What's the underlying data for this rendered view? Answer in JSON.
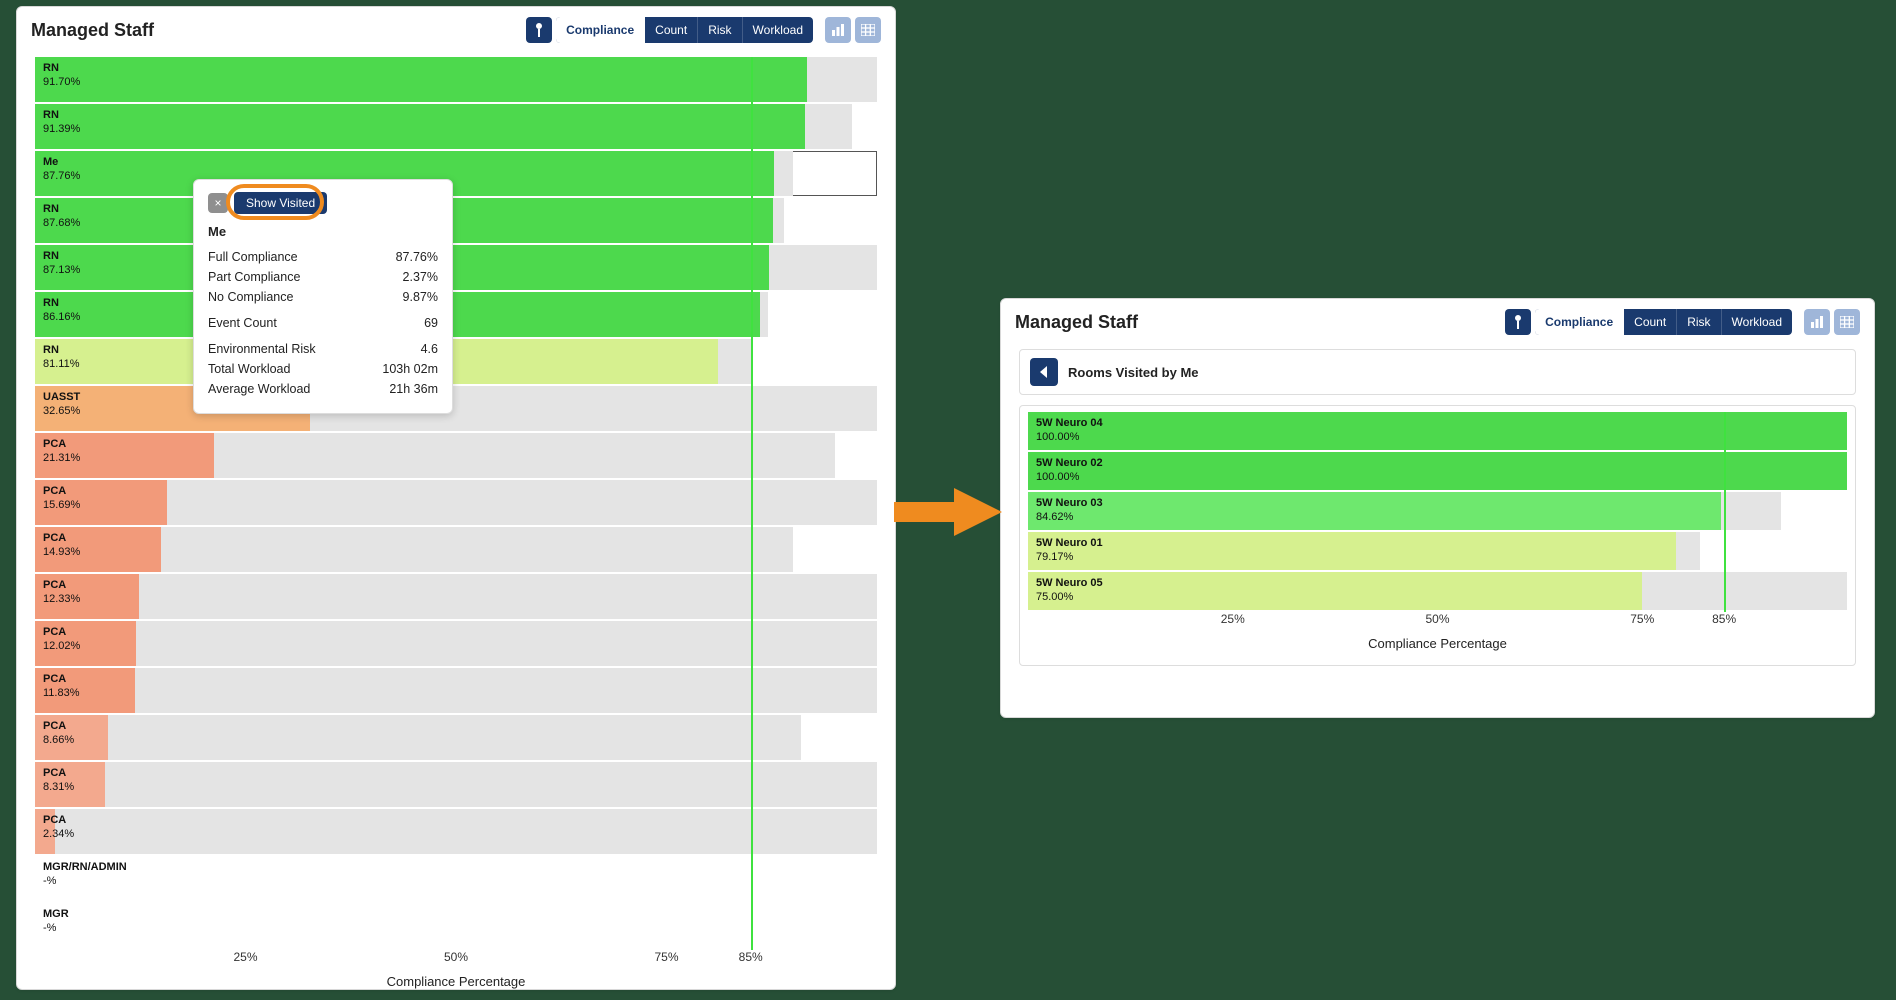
{
  "colors": {
    "navy": "#1a3a6e",
    "navy_light": "#9fb6d9",
    "row_bg": "#e4e4e4",
    "benchmark": "#3fe23f",
    "arrow": "#ef8b1f",
    "green_hi": "#4dd94d",
    "green_mid": "#6ee86e",
    "green_lime": "#d6f08f",
    "orange_soft": "#f4b176",
    "salmon": "#f29a7a",
    "salmon2": "#f3a98e"
  },
  "left": {
    "title": "Managed Staff",
    "toolbar": {
      "metrics": [
        "Compliance",
        "Count",
        "Risk",
        "Workload"
      ],
      "metrics_active_index": 0
    },
    "benchmark_pct": 85,
    "x_ticks": [
      25,
      50,
      75,
      85
    ],
    "x_axis_label": "Compliance Percentage",
    "rows": [
      {
        "name": "RN",
        "pct": 91.7,
        "pct_label": "91.70%",
        "bar_pct": 91.7,
        "color": "#4dd94d",
        "track_pct": 100
      },
      {
        "name": "RN",
        "pct": 91.39,
        "pct_label": "91.39%",
        "bar_pct": 91.39,
        "color": "#4dd94d",
        "track_pct": 97
      },
      {
        "name": "Me",
        "pct": 87.76,
        "pct_label": "87.76%",
        "bar_pct": 87.76,
        "color": "#4dd94d",
        "track_pct": 90,
        "selected": true
      },
      {
        "name": "RN",
        "pct": 87.68,
        "pct_label": "87.68%",
        "bar_pct": 87.68,
        "color": "#4dd94d",
        "track_pct": 89
      },
      {
        "name": "RN",
        "pct": 87.13,
        "pct_label": "87.13%",
        "bar_pct": 87.13,
        "color": "#4dd94d",
        "track_pct": 100
      },
      {
        "name": "RN",
        "pct": 86.16,
        "pct_label": "86.16%",
        "bar_pct": 86.16,
        "color": "#4dd94d",
        "track_pct": 87
      },
      {
        "name": "RN",
        "pct": 81.11,
        "pct_label": "81.11%",
        "bar_pct": 81.11,
        "color": "#d6f08f",
        "track_pct": 85
      },
      {
        "name": "UASST",
        "pct": 32.65,
        "pct_label": "32.65%",
        "bar_pct": 32.65,
        "color": "#f4b176",
        "track_pct": 100
      },
      {
        "name": "PCA",
        "pct": 21.31,
        "pct_label": "21.31%",
        "bar_pct": 21.31,
        "color": "#f29a7a",
        "track_pct": 95
      },
      {
        "name": "PCA",
        "pct": 15.69,
        "pct_label": "15.69%",
        "bar_pct": 15.69,
        "color": "#f29a7a",
        "track_pct": 100
      },
      {
        "name": "PCA",
        "pct": 14.93,
        "pct_label": "14.93%",
        "bar_pct": 14.93,
        "color": "#f29a7a",
        "track_pct": 90
      },
      {
        "name": "PCA",
        "pct": 12.33,
        "pct_label": "12.33%",
        "bar_pct": 12.33,
        "color": "#f29a7a",
        "track_pct": 100
      },
      {
        "name": "PCA",
        "pct": 12.02,
        "pct_label": "12.02%",
        "bar_pct": 12.02,
        "color": "#f29a7a",
        "track_pct": 100
      },
      {
        "name": "PCA",
        "pct": 11.83,
        "pct_label": "11.83%",
        "bar_pct": 11.83,
        "color": "#f29a7a",
        "track_pct": 100
      },
      {
        "name": "PCA",
        "pct": 8.66,
        "pct_label": "8.66%",
        "bar_pct": 8.66,
        "color": "#f3a98e",
        "track_pct": 91
      },
      {
        "name": "PCA",
        "pct": 8.31,
        "pct_label": "8.31%",
        "bar_pct": 8.31,
        "color": "#f3a98e",
        "track_pct": 100
      },
      {
        "name": "PCA",
        "pct": 2.34,
        "pct_label": "2.34%",
        "bar_pct": 2.34,
        "color": "#f3a98e",
        "track_pct": 100
      },
      {
        "name": "MGR/RN/ADMIN",
        "pct": null,
        "pct_label": "-%",
        "bar_pct": 0,
        "color": "transparent",
        "track_pct": 0,
        "no_bg": true
      },
      {
        "name": "MGR",
        "pct": null,
        "pct_label": "-%",
        "bar_pct": 0,
        "color": "transparent",
        "track_pct": 0,
        "no_bg": true
      }
    ],
    "tooltip": {
      "close": "×",
      "show_visited": "Show Visited",
      "title": "Me",
      "rows": [
        {
          "label": "Full Compliance",
          "value": "87.76%"
        },
        {
          "label": "Part Compliance",
          "value": "2.37%"
        },
        {
          "label": "No Compliance",
          "value": "9.87%"
        }
      ],
      "rows2": [
        {
          "label": "Event Count",
          "value": "69"
        }
      ],
      "rows3": [
        {
          "label": "Environmental Risk",
          "value": "4.6"
        },
        {
          "label": "Total Workload",
          "value": "103h 02m"
        },
        {
          "label": "Average Workload",
          "value": "21h 36m"
        }
      ]
    }
  },
  "right": {
    "title": "Managed Staff",
    "toolbar": {
      "metrics": [
        "Compliance",
        "Count",
        "Risk",
        "Workload"
      ],
      "metrics_active_index": 0
    },
    "back_title": "Rooms Visited by Me",
    "benchmark_pct": 85,
    "x_ticks": [
      25,
      50,
      75,
      85
    ],
    "x_axis_label": "Compliance Percentage",
    "rows": [
      {
        "name": "5W Neuro 04",
        "pct_label": "100.00%",
        "bar_pct": 100,
        "color": "#4dd94d",
        "track_pct": 100
      },
      {
        "name": "5W Neuro 02",
        "pct_label": "100.00%",
        "bar_pct": 100,
        "color": "#4dd94d",
        "track_pct": 100
      },
      {
        "name": "5W Neuro 03",
        "pct_label": "84.62%",
        "bar_pct": 84.62,
        "color": "#6ee86e",
        "track_pct": 92
      },
      {
        "name": "5W Neuro 01",
        "pct_label": "79.17%",
        "bar_pct": 79.17,
        "color": "#d6f08f",
        "track_pct": 82
      },
      {
        "name": "5W Neuro 05",
        "pct_label": "75.00%",
        "bar_pct": 75.0,
        "color": "#d6f08f",
        "track_pct": 100
      }
    ]
  }
}
